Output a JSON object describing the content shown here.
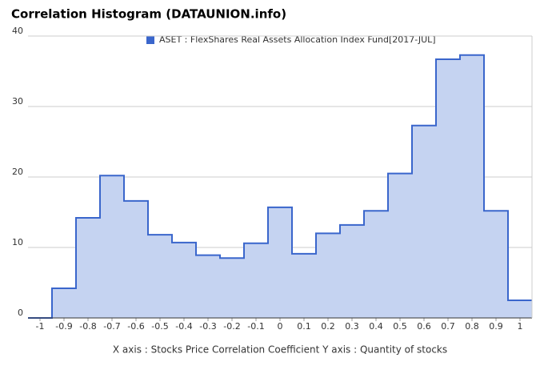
{
  "chart_data": {
    "type": "step-area",
    "title": "Correlation Histogram (DATAUNION.info)",
    "x_label": "X axis : Stocks Price Correlation Coefficient  Y axis : Quantity of stocks",
    "series": [
      {
        "name": "ASET : FlexShares Real Assets Allocation Index Fund[2017-JUL]",
        "color": "#3a66cc",
        "fill": "#c5d3f1",
        "values": [
          0,
          4.2,
          14.2,
          20.2,
          16.6,
          11.8,
          10.7,
          8.9,
          8.5,
          10.6,
          15.7,
          9.1,
          12,
          13.2,
          15.2,
          20.5,
          27.3,
          36.7,
          37.3,
          15.2,
          2.5
        ]
      }
    ],
    "x": [
      -1,
      -0.9,
      -0.8,
      -0.7,
      -0.6,
      -0.5,
      -0.4,
      -0.3,
      -0.2,
      -0.1,
      0,
      0.1,
      0.2,
      0.3,
      0.4,
      0.5,
      0.6,
      0.7,
      0.8,
      0.9,
      1
    ],
    "xlim": [
      -1.05,
      1.05
    ],
    "xticks": [
      -1,
      -0.9,
      -0.8,
      -0.7,
      -0.6,
      -0.5,
      -0.4,
      -0.3,
      -0.2,
      -0.1,
      0,
      0.1,
      0.2,
      0.3,
      0.4,
      0.5,
      0.6,
      0.7,
      0.8,
      0.9,
      1
    ],
    "ylim": [
      0,
      40
    ],
    "yticks": [
      0,
      10,
      20,
      30,
      40
    ],
    "grid": true
  }
}
